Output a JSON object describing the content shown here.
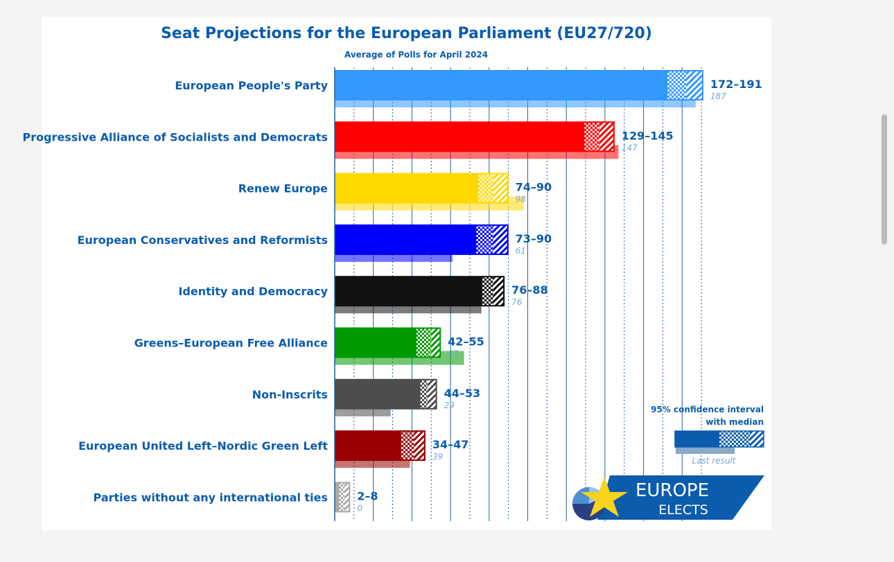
{
  "chart_data": {
    "type": "bar",
    "title": "Seat Projections for the European Parliament (EU27/720)",
    "subtitle": "Average of Polls for April 2024",
    "xlim": [
      0,
      200
    ],
    "grid": true,
    "categories": [
      "European People's Party",
      "Progressive Alliance of Socialists and Democrats",
      "Renew Europe",
      "European Conservatives and Reformists",
      "Identity and Democracy",
      "Greens–European Free Alliance",
      "Non-Inscrits",
      "European United Left–Nordic Green Left",
      "Parties without any international ties"
    ],
    "series": [
      {
        "name": "95% confidence interval with median",
        "low": [
          172,
          129,
          74,
          73,
          76,
          42,
          44,
          34,
          2
        ],
        "median": [
          182,
          137,
          82,
          82,
          82,
          50,
          48,
          41,
          5
        ],
        "high": [
          191,
          145,
          90,
          90,
          88,
          55,
          53,
          47,
          8
        ],
        "labels": [
          "172–191",
          "129–145",
          "74–90",
          "73–90",
          "76–88",
          "42–55",
          "44–53",
          "34–47",
          "2–8"
        ]
      },
      {
        "name": "Last result",
        "values": [
          187,
          147,
          98,
          61,
          76,
          67,
          29,
          39,
          0
        ],
        "labels": [
          "187",
          "147",
          "98",
          "61",
          "76",
          "67",
          "29",
          "39",
          "0"
        ]
      }
    ],
    "colors": [
      "#3399ff",
      "#ff0000",
      "#ffd800",
      "#0000ff",
      "#111111",
      "#009900",
      "#4d4d4d",
      "#990000",
      "#aaaaaa"
    ],
    "legend": {
      "title_line1": "95% confidence interval",
      "title_line2": "with median",
      "last_result": "Last result",
      "position": "bottom-right"
    }
  },
  "logo": {
    "line1": "EUROPE",
    "line2": "ELECTS"
  },
  "text_color": "#0b5cad"
}
